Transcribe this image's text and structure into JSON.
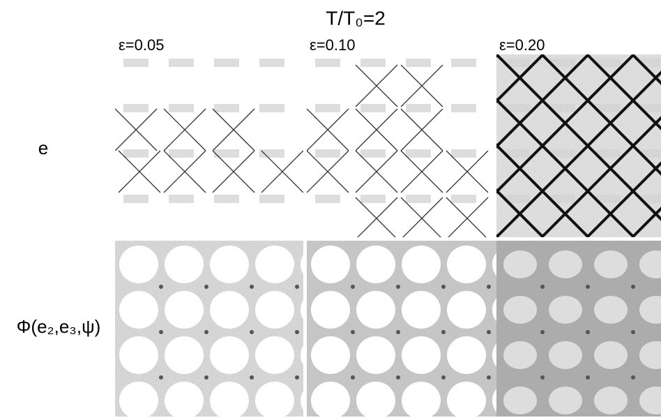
{
  "title": "T/T₀=2",
  "columns": [
    "ε=0.05",
    "ε=0.10",
    "ε=0.20"
  ],
  "rows": [
    "e",
    "Φ(e₂,e₃,ψ)"
  ]
}
